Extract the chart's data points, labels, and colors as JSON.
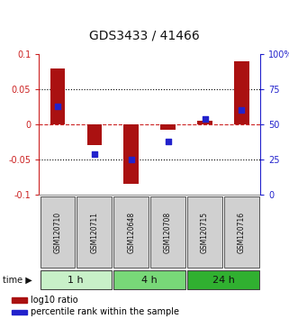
{
  "title": "GDS3433 / 41466",
  "samples": [
    "GSM120710",
    "GSM120711",
    "GSM120648",
    "GSM120708",
    "GSM120715",
    "GSM120716"
  ],
  "log10_ratio": [
    0.08,
    -0.03,
    -0.085,
    -0.008,
    0.005,
    0.09
  ],
  "percentile_rank": [
    63,
    29,
    25,
    38,
    54,
    60
  ],
  "groups": [
    {
      "label": "1 h",
      "samples": [
        0,
        1
      ],
      "color": "#c8f0c8"
    },
    {
      "label": "4 h",
      "samples": [
        2,
        3
      ],
      "color": "#78d878"
    },
    {
      "label": "24 h",
      "samples": [
        4,
        5
      ],
      "color": "#30b030"
    }
  ],
  "ylim_left": [
    -0.1,
    0.1
  ],
  "ylim_right": [
    0,
    100
  ],
  "bar_color": "#aa1111",
  "dot_color": "#2222cc",
  "zero_line_color": "#cc2222",
  "bg_color": "#ffffff",
  "sample_bg_color": "#d0d0d0",
  "sample_border_color": "#555555",
  "left_label_color": "#cc2222",
  "right_label_color": "#2222cc",
  "bar_width": 0.4,
  "dot_size": 18,
  "yticks_left": [
    -0.1,
    -0.05,
    0,
    0.05,
    0.1
  ],
  "yticks_right": [
    0,
    25,
    50,
    75,
    100
  ],
  "title_fontsize": 10,
  "tick_fontsize": 7,
  "sample_fontsize": 5.5,
  "group_fontsize": 8,
  "legend_fontsize": 7
}
